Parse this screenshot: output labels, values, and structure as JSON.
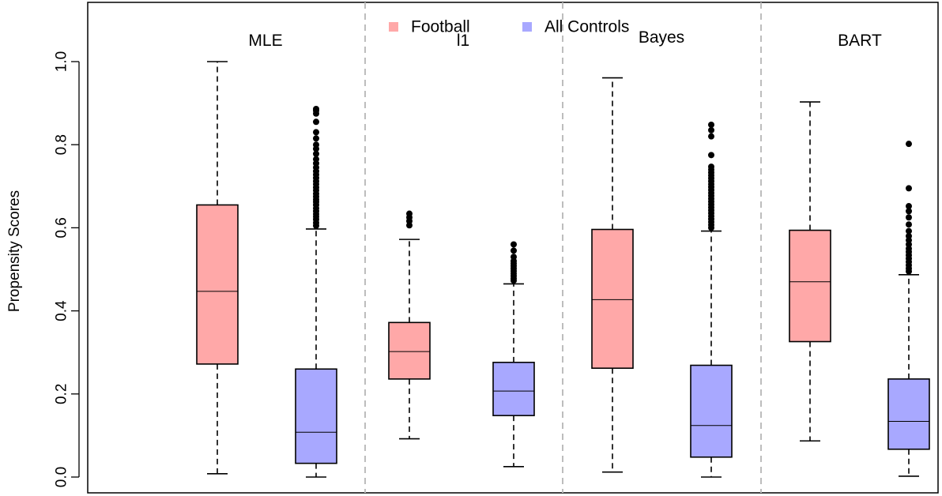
{
  "chart_data": {
    "type": "box",
    "ylabel": "Propensity Scores",
    "ylim": [
      -0.04,
      1.12
    ],
    "yticks": [
      0.0,
      0.2,
      0.4,
      0.6,
      0.8,
      1.0
    ],
    "ytick_labels": [
      "0.0",
      "0.2",
      "0.4",
      "0.6",
      "0.8",
      "1.0"
    ],
    "grid": false,
    "legend_position": "top-center",
    "legend": [
      {
        "name": "Football",
        "color": "#ffa8a8"
      },
      {
        "name": "All Controls",
        "color": "#a8a8ff"
      }
    ],
    "series_colors": {
      "Football": "#ffa8a8",
      "All Controls": "#a8a8ff"
    },
    "panels": [
      {
        "label": "MLE",
        "boxes": [
          {
            "group": "Football",
            "whisker_low": 0.008,
            "q1": 0.272,
            "median": 0.447,
            "q3": 0.655,
            "whisker_high": 1.0,
            "outliers": []
          },
          {
            "group": "All Controls",
            "whisker_low": 0.0,
            "q1": 0.033,
            "median": 0.108,
            "q3": 0.26,
            "whisker_high": 0.597,
            "outliers": [
              0.605,
              0.612,
              0.62,
              0.627,
              0.633,
              0.64,
              0.647,
              0.655,
              0.662,
              0.668,
              0.675,
              0.682,
              0.69,
              0.697,
              0.705,
              0.712,
              0.72,
              0.728,
              0.736,
              0.745,
              0.755,
              0.765,
              0.778,
              0.79,
              0.8,
              0.815,
              0.83,
              0.855,
              0.875,
              0.882,
              0.886
            ]
          }
        ]
      },
      {
        "label": "l1",
        "boxes": [
          {
            "group": "Football",
            "whisker_low": 0.092,
            "q1": 0.236,
            "median": 0.302,
            "q3": 0.372,
            "whisker_high": 0.572,
            "outliers": [
              0.606,
              0.616,
              0.625,
              0.634
            ]
          },
          {
            "group": "All Controls",
            "whisker_low": 0.025,
            "q1": 0.148,
            "median": 0.207,
            "q3": 0.276,
            "whisker_high": 0.465,
            "outliers": [
              0.473,
              0.478,
              0.484,
              0.49,
              0.496,
              0.502,
              0.508,
              0.514,
              0.52,
              0.53,
              0.545,
              0.56
            ]
          }
        ]
      },
      {
        "label": "Bayes",
        "boxes": [
          {
            "group": "Football",
            "whisker_low": 0.012,
            "q1": 0.262,
            "median": 0.427,
            "q3": 0.596,
            "whisker_high": 0.961,
            "outliers": []
          },
          {
            "group": "All Controls",
            "whisker_low": 0.0,
            "q1": 0.048,
            "median": 0.124,
            "q3": 0.269,
            "whisker_high": 0.592,
            "outliers": [
              0.6,
              0.607,
              0.614,
              0.621,
              0.628,
              0.635,
              0.642,
              0.649,
              0.656,
              0.663,
              0.67,
              0.677,
              0.684,
              0.691,
              0.698,
              0.705,
              0.712,
              0.719,
              0.726,
              0.733,
              0.74,
              0.747,
              0.775,
              0.82,
              0.835,
              0.848
            ]
          }
        ]
      },
      {
        "label": "BART",
        "boxes": [
          {
            "group": "Football",
            "whisker_low": 0.087,
            "q1": 0.326,
            "median": 0.47,
            "q3": 0.594,
            "whisker_high": 0.903,
            "outliers": []
          },
          {
            "group": "All Controls",
            "whisker_low": 0.002,
            "q1": 0.067,
            "median": 0.134,
            "q3": 0.236,
            "whisker_high": 0.487,
            "outliers": [
              0.495,
              0.502,
              0.51,
              0.518,
              0.526,
              0.534,
              0.542,
              0.55,
              0.56,
              0.57,
              0.58,
              0.592,
              0.608,
              0.625,
              0.64,
              0.652,
              0.695,
              0.802
            ]
          }
        ]
      }
    ]
  }
}
